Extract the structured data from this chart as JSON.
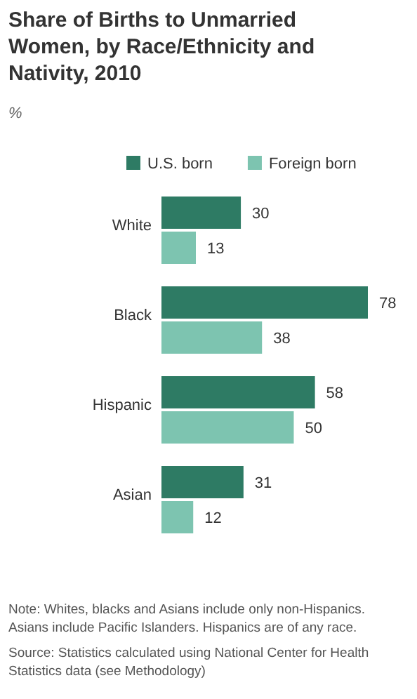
{
  "chart_data": {
    "type": "bar",
    "orientation": "horizontal",
    "title": "Share of Births to Unmarried Women, by Race/Ethnicity and Nativity, 2010",
    "subtitle": "%",
    "categories": [
      "White",
      "Black",
      "Hispanic",
      "Asian"
    ],
    "series": [
      {
        "name": "U.S. born",
        "color": "#2e7b64",
        "values": [
          30,
          78,
          58,
          31
        ]
      },
      {
        "name": "Foreign born",
        "color": "#7dc4b0",
        "values": [
          13,
          38,
          50,
          12
        ]
      }
    ],
    "data_labels": true,
    "legend": "top",
    "annotations": [
      "Note: Whites, blacks and Asians include only non-Hispanics. Asians include Pacific Islanders. Hispanics are of any race.",
      "Source: Statistics calculated using National Center for Health Statistics data (see Methodology)"
    ]
  }
}
